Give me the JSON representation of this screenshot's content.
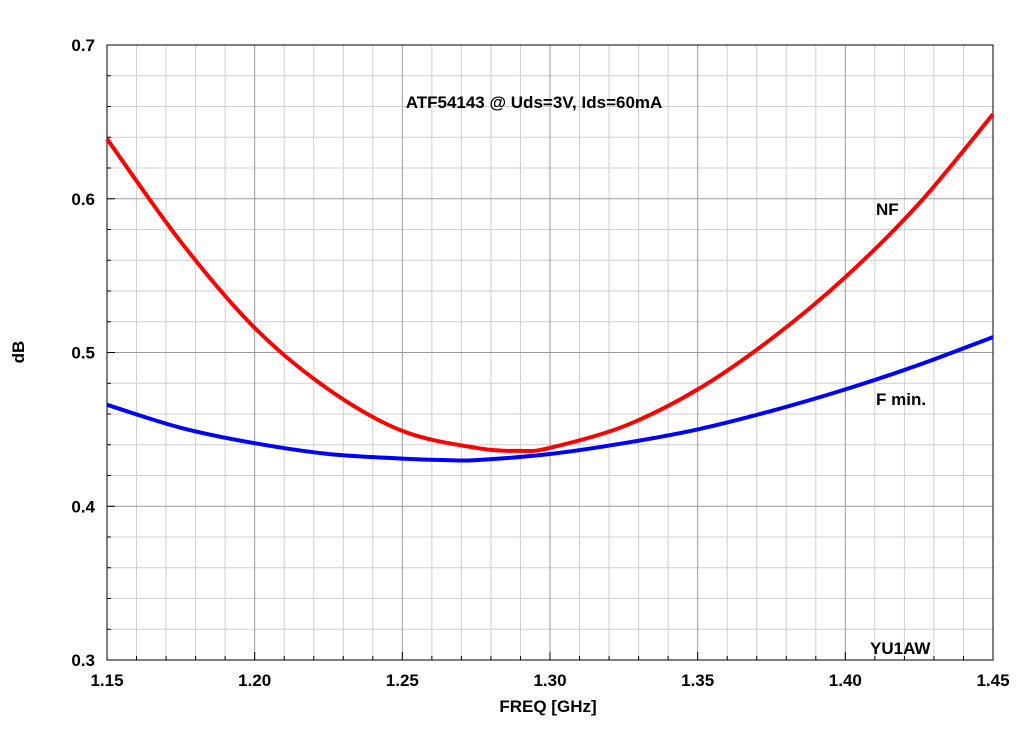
{
  "chart_data": {
    "type": "line",
    "title": "ATF54143 @ Uds=3V, Ids=60mA",
    "xlabel": "FREQ [GHz]",
    "ylabel": "dB",
    "xlim": [
      1.15,
      1.45
    ],
    "ylim": [
      0.3,
      0.7
    ],
    "x_ticks": [
      "1.15",
      "1.20",
      "1.25",
      "1.30",
      "1.35",
      "1.40",
      "1.45"
    ],
    "y_ticks": [
      "0.3",
      "0.4",
      "0.5",
      "0.6",
      "0.7"
    ],
    "grid": true,
    "annotation": "YU1AW",
    "series": [
      {
        "name": "NF",
        "color": "#ff0000",
        "x": [
          1.15,
          1.175,
          1.2,
          1.225,
          1.25,
          1.275,
          1.29,
          1.3,
          1.325,
          1.35,
          1.375,
          1.4,
          1.425,
          1.45
        ],
        "y": [
          0.639,
          0.572,
          0.516,
          0.476,
          0.449,
          0.438,
          0.436,
          0.438,
          0.452,
          0.476,
          0.509,
          0.549,
          0.597,
          0.655
        ]
      },
      {
        "name": "F min.",
        "color": "#0000ff",
        "x": [
          1.15,
          1.175,
          1.2,
          1.225,
          1.25,
          1.265,
          1.275,
          1.3,
          1.325,
          1.35,
          1.375,
          1.4,
          1.425,
          1.45
        ],
        "y": [
          0.466,
          0.451,
          0.441,
          0.434,
          0.431,
          0.43,
          0.43,
          0.434,
          0.441,
          0.45,
          0.462,
          0.476,
          0.492,
          0.51
        ]
      }
    ]
  }
}
